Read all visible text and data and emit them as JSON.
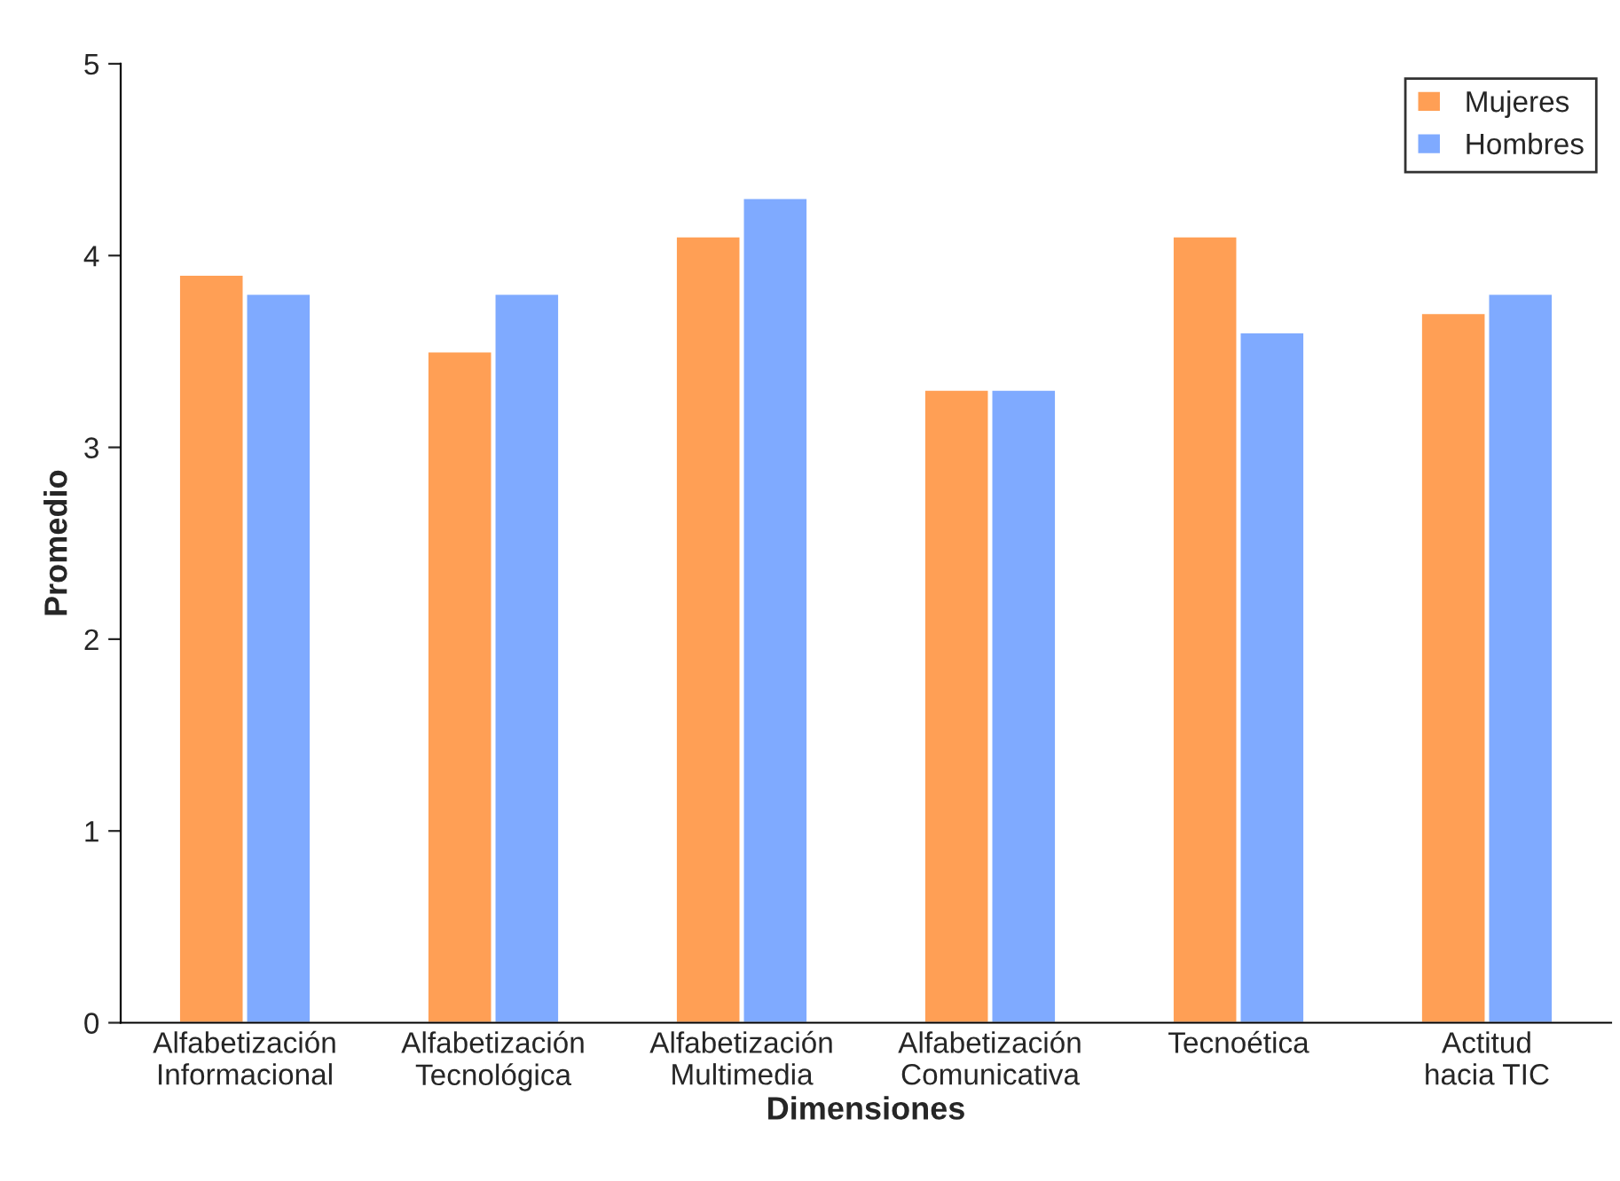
{
  "chart_data": {
    "type": "bar",
    "xlabel": "Dimensiones",
    "ylabel": "Promedio",
    "categories": [
      "Alfabetización\nInformacional",
      "Alfabetización\nTecnológica",
      "Alfabetización\nMultimedia",
      "Alfabetización\nComunicativa",
      "Tecnoética",
      "Actitud\nhacia TIC"
    ],
    "series": [
      {
        "name": "Mujeres",
        "color": "#ff9f55",
        "values": [
          3.9,
          3.5,
          4.1,
          3.3,
          4.1,
          3.7
        ]
      },
      {
        "name": "Hombres",
        "color": "#7faaff",
        "values": [
          3.8,
          3.8,
          4.3,
          3.3,
          3.6,
          3.8
        ]
      }
    ],
    "ylim": [
      0,
      5
    ],
    "yticks": [
      0,
      1,
      2,
      3,
      4,
      5
    ],
    "grid": false,
    "legend": "top right"
  }
}
